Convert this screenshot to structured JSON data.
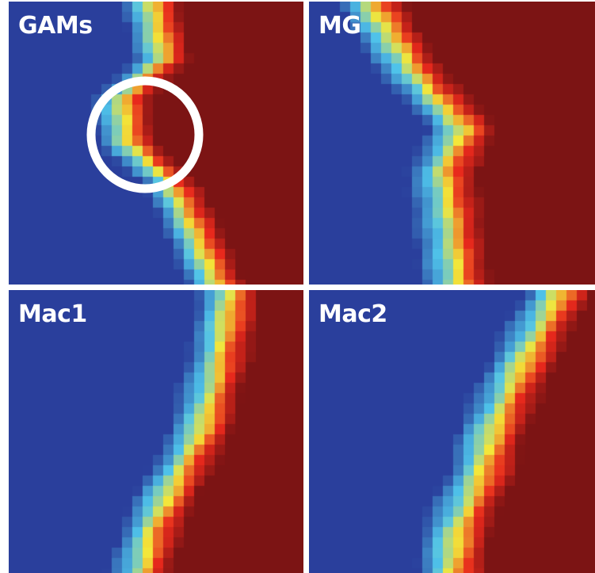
{
  "chart_data": [
    {
      "type": "heatmap",
      "title": "GAMs",
      "annotation": "circle-marker"
    },
    {
      "type": "heatmap",
      "title": "MG"
    },
    {
      "type": "heatmap",
      "title": "Mac1"
    },
    {
      "type": "heatmap",
      "title": "Mac2"
    }
  ],
  "colors": {
    "low": "#2a3f9c",
    "mid_low": "#4fc3ea",
    "mid": "#f3e63a",
    "mid_high": "#e8291c",
    "high": "#7c1414",
    "marker": "#ffffff",
    "separator": "#ffffff"
  }
}
